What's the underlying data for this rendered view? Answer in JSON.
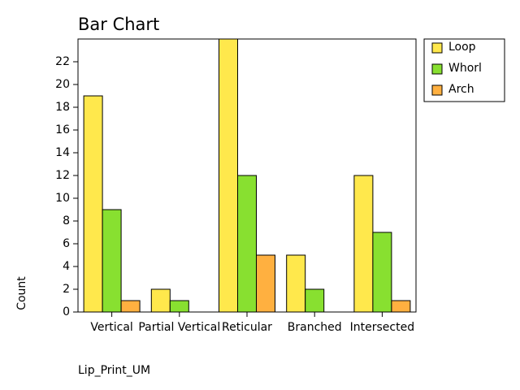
{
  "chart_data": {
    "type": "bar",
    "title": "Bar Chart",
    "x_label": "Lip_Print_UM",
    "y_label": "Count",
    "categories": [
      "Vertical",
      "Partial Vertical",
      "Reticular",
      "Branched",
      "Intersected"
    ],
    "series": [
      {
        "name": "Loop",
        "color": "#ffe84c",
        "values": [
          19,
          2,
          24,
          5,
          12
        ]
      },
      {
        "name": "Whorl",
        "color": "#88e030",
        "values": [
          9,
          1,
          12,
          2,
          7
        ]
      },
      {
        "name": "Arch",
        "color": "#ffb040",
        "values": [
          1,
          0,
          5,
          0,
          1
        ]
      }
    ],
    "ylim": [
      0,
      24
    ],
    "yticks": [
      0,
      2,
      4,
      6,
      8,
      10,
      12,
      14,
      16,
      18,
      20,
      22
    ],
    "legend": "outside-right"
  }
}
